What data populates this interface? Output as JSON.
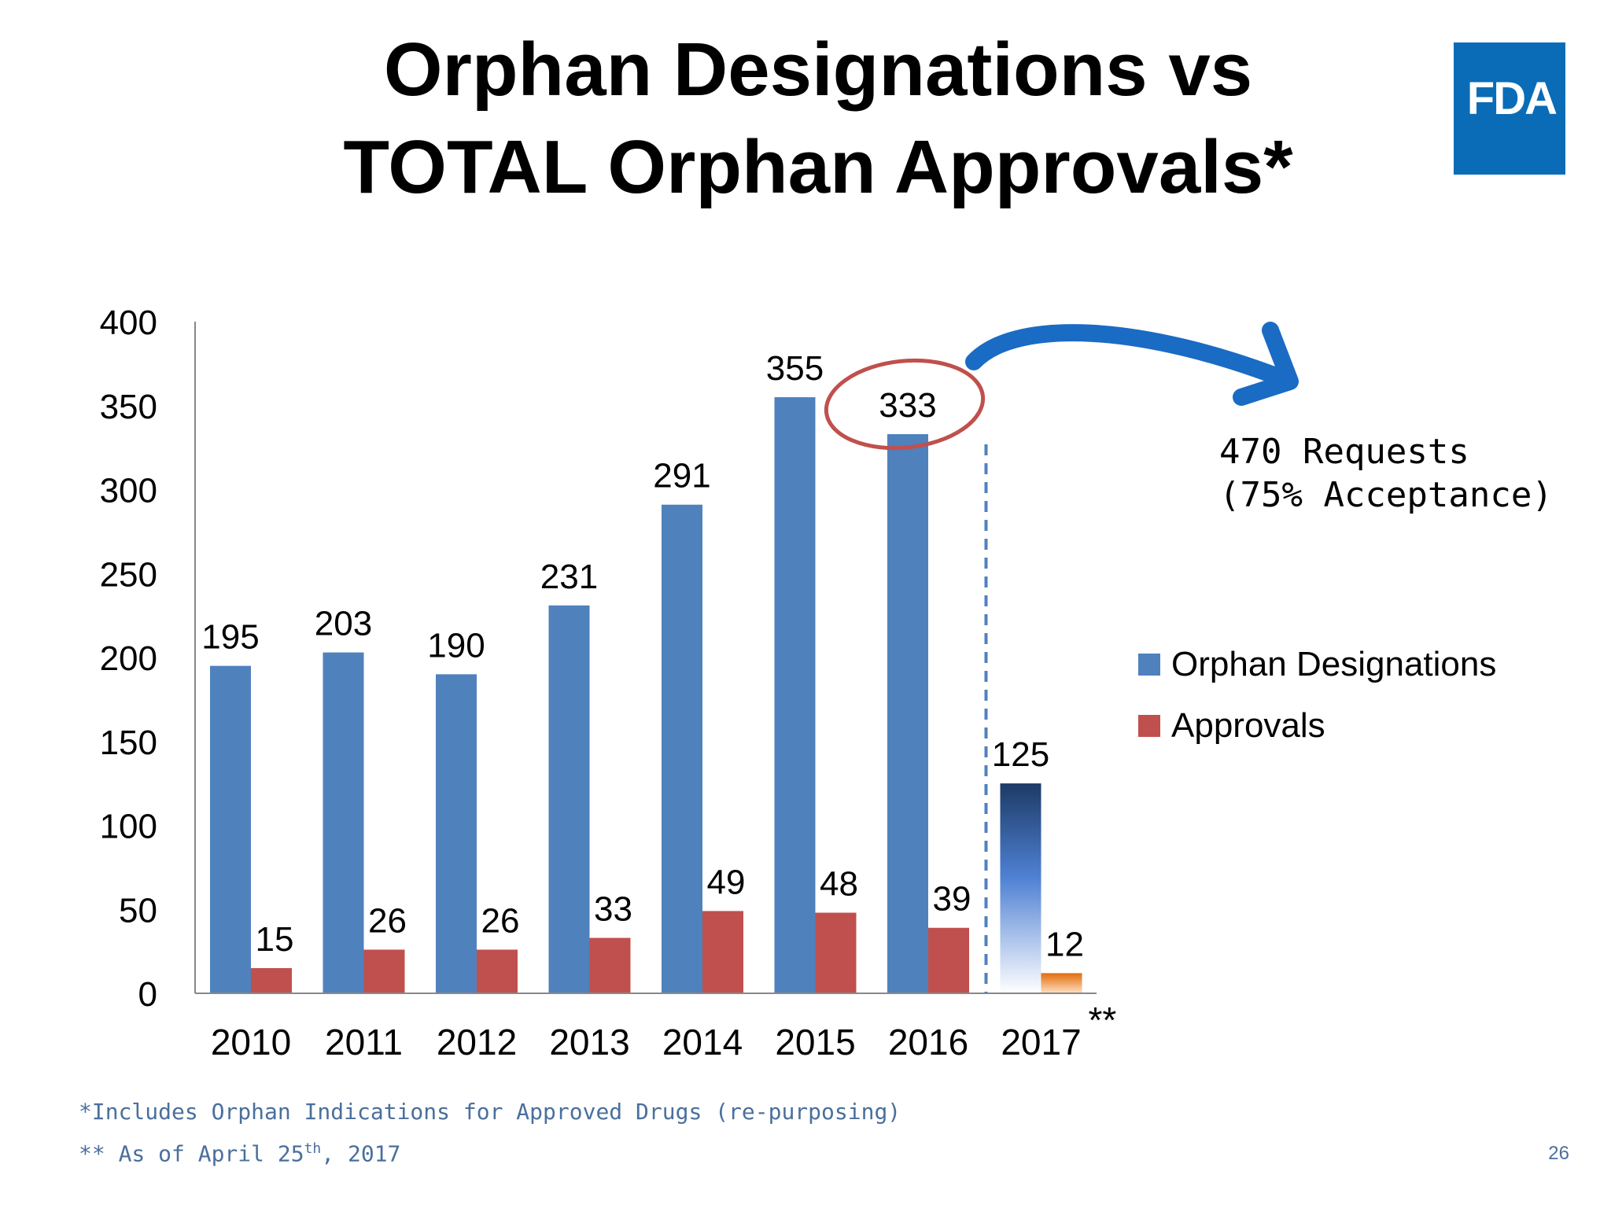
{
  "slide": {
    "title_line1": "Orphan Designations vs",
    "title_line2": "TOTAL Orphan Approvals*",
    "logo_text": "FDA",
    "logo_color": "#0a6cb7",
    "footnote1": "*Includes Orphan Indications for Approved Drugs (re-purposing)",
    "footnote2_prefix": "** As of April 25",
    "footnote2_sup": "th",
    "footnote2_suffix": ", 2017",
    "page_number": "26",
    "annotation_line1": "470 Requests",
    "annotation_line2": "(75% Acceptance)"
  },
  "chart_data": {
    "type": "bar",
    "categories": [
      "2010",
      "2011",
      "2012",
      "2013",
      "2014",
      "2015",
      "2016",
      "2017"
    ],
    "category_suffix_last": "**",
    "series": [
      {
        "name": "Orphan Designations",
        "color": "#4f81bd",
        "values": [
          195,
          203,
          190,
          231,
          291,
          355,
          333,
          125
        ]
      },
      {
        "name": "Approvals",
        "color": "#c0504d",
        "values": [
          15,
          26,
          26,
          33,
          49,
          48,
          39,
          12
        ]
      }
    ],
    "ylim": [
      0,
      400
    ],
    "yticks": [
      0,
      50,
      100,
      150,
      200,
      250,
      300,
      350,
      400
    ],
    "legend_position": "right",
    "grid": false,
    "highlight": {
      "category": "2016",
      "series": "Orphan Designations",
      "style": "red circle"
    },
    "divider_before_category": "2017"
  }
}
